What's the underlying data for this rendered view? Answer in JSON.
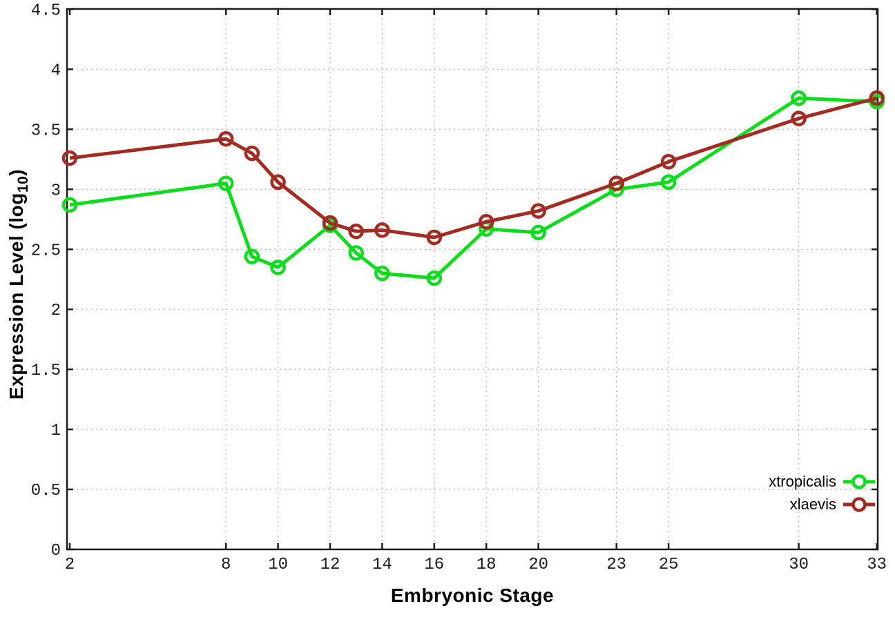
{
  "chart_data": {
    "type": "line",
    "title": "",
    "xlabel": "Embryonic Stage",
    "ylabel": "Expression Level (log10)",
    "ylabel_parts": {
      "main": "Expression Level (log",
      "sub": "10",
      "end": ")"
    },
    "x": [
      2,
      8,
      9,
      10,
      12,
      13,
      14,
      16,
      18,
      20,
      23,
      25,
      30,
      33
    ],
    "series": [
      {
        "name": "xtropicalis",
        "color": "#0bdc1c",
        "values": [
          2.87,
          3.05,
          2.44,
          2.35,
          2.7,
          2.47,
          2.3,
          2.26,
          2.67,
          2.64,
          3.0,
          3.06,
          3.76,
          3.73
        ]
      },
      {
        "name": "xlaevis",
        "color": "#a32b22",
        "values": [
          3.26,
          3.42,
          3.3,
          3.06,
          2.72,
          2.65,
          2.66,
          2.6,
          2.73,
          2.82,
          3.05,
          3.23,
          3.59,
          3.76
        ]
      }
    ],
    "xticks": [
      "2",
      "8",
      "10",
      "12",
      "14",
      "16",
      "18",
      "20",
      "23",
      "25",
      "30",
      "33"
    ],
    "xtick_values": [
      2,
      8,
      10,
      12,
      14,
      16,
      18,
      20,
      23,
      25,
      30,
      33
    ],
    "yticks": [
      "0",
      "0.5",
      "1",
      "1.5",
      "2",
      "2.5",
      "3",
      "3.5",
      "4",
      "4.5"
    ],
    "ytick_values": [
      0,
      0.5,
      1,
      1.5,
      2,
      2.5,
      3,
      3.5,
      4,
      4.5
    ],
    "xlim": [
      2,
      33
    ],
    "ylim": [
      0,
      4.5
    ],
    "grid": true,
    "legend_position": "inside bottom-right",
    "marker": "open-circle"
  },
  "colors": {
    "background": "#ffffff",
    "frame": "#1c1c1c",
    "grid": "#b8b8b8",
    "text": "#1c1c1c"
  }
}
